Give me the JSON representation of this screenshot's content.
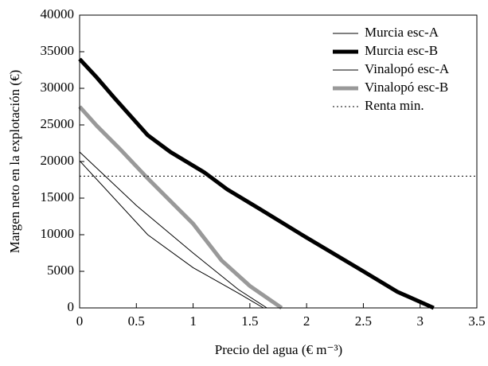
{
  "chart_data": {
    "type": "line",
    "xlabel": "Precio del agua (€ m⁻³)",
    "ylabel": "Margen neto en la explotación (€)",
    "xlim": [
      0,
      3.5
    ],
    "xticks": [
      0,
      0.5,
      1,
      1.5,
      2,
      2.5,
      3,
      3.5
    ],
    "ylim": [
      0,
      40000
    ],
    "yticks": [
      0,
      5000,
      10000,
      15000,
      20000,
      25000,
      30000,
      35000,
      40000
    ],
    "legend": "upper right",
    "series": [
      {
        "name": "Murcia esc-A",
        "color": "#000000",
        "line_width": 1,
        "dash": "solid",
        "x": [
          0,
          0.6,
          1,
          1.4,
          1.62
        ],
        "values": [
          20100,
          10000,
          5500,
          2000,
          0
        ]
      },
      {
        "name": "Murcia esc-B",
        "color": "#000000",
        "line_width": 5,
        "dash": "solid",
        "x": [
          0,
          0.15,
          0.3,
          0.6,
          0.8,
          1.1,
          1.3,
          1.6,
          2,
          2.5,
          2.8,
          3.12
        ],
        "values": [
          34000,
          31500,
          28800,
          23600,
          21300,
          18500,
          16200,
          13400,
          9600,
          5000,
          2200,
          0
        ]
      },
      {
        "name": "Vinalopó esc-A",
        "color": "#000000",
        "line_width": 1,
        "dash": "solid",
        "x": [
          0,
          0.5,
          1,
          1.4,
          1.65
        ],
        "values": [
          21300,
          14000,
          7500,
          2500,
          0
        ]
      },
      {
        "name": "Vinalopó esc-B",
        "color": "#999999",
        "line_width": 5,
        "dash": "solid",
        "x": [
          0,
          0.15,
          0.35,
          0.6,
          1,
          1.25,
          1.5,
          1.78
        ],
        "values": [
          27500,
          24900,
          21800,
          17700,
          11500,
          6500,
          3000,
          0
        ]
      },
      {
        "name": "Renta min.",
        "color": "#000000",
        "line_width": 1,
        "dash": "dotted",
        "x": [
          0,
          3.5
        ],
        "values": [
          18000,
          18000
        ]
      }
    ]
  }
}
